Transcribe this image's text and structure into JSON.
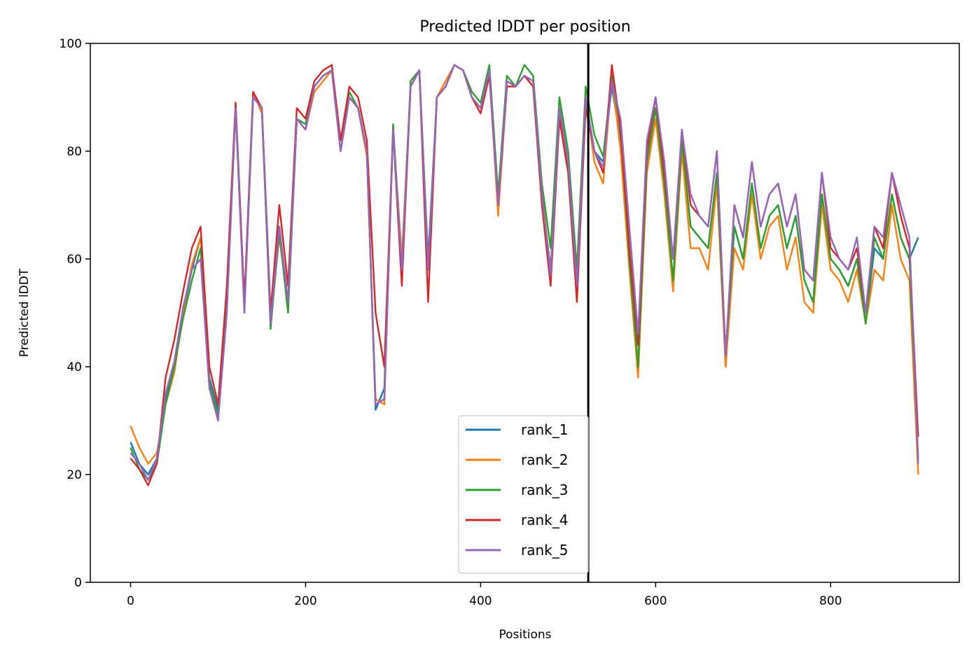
{
  "chart_data": {
    "type": "line",
    "title": "Predicted lDDT per position",
    "xlabel": "Positions",
    "ylabel": "Predicted lDDT",
    "xlim": [
      -46,
      947
    ],
    "ylim": [
      0,
      100
    ],
    "xticks": [
      0,
      200,
      400,
      600,
      800
    ],
    "yticks": [
      0,
      20,
      40,
      60,
      80,
      100
    ],
    "grid": false,
    "legend_position": "lower center",
    "vline_x": 523,
    "x_start": 0,
    "x_step": 10,
    "series": [
      {
        "name": "rank_1",
        "color": "#1f77b4",
        "values": [
          26,
          22,
          20,
          23,
          34,
          40,
          50,
          58,
          64,
          38,
          32,
          52,
          88,
          52,
          90,
          88,
          50,
          66,
          52,
          86,
          84,
          92,
          94,
          95,
          80,
          90,
          88,
          80,
          32,
          36,
          84,
          60,
          92,
          95,
          60,
          90,
          92,
          96,
          95,
          90,
          88,
          95,
          70,
          93,
          92,
          94,
          93,
          72,
          58,
          88,
          78,
          55,
          90,
          80,
          78,
          92,
          82,
          60,
          40,
          78,
          88,
          74,
          56,
          82,
          66,
          64,
          62,
          76,
          40,
          66,
          60,
          74,
          62,
          68,
          70,
          62,
          68,
          56,
          52,
          72,
          60,
          58,
          55,
          60,
          48,
          62,
          60,
          72,
          64,
          60,
          64
        ]
      },
      {
        "name": "rank_2",
        "color": "#ff7f0e",
        "values": [
          29,
          25,
          22,
          24,
          33,
          39,
          50,
          59,
          64,
          37,
          31,
          53,
          89,
          50,
          91,
          87,
          49,
          64,
          52,
          86,
          84,
          91,
          93,
          95,
          80,
          90,
          88,
          79,
          34,
          33,
          84,
          60,
          92,
          95,
          58,
          90,
          93,
          96,
          95,
          90,
          88,
          95,
          68,
          92,
          92,
          94,
          92,
          73,
          57,
          88,
          76,
          55,
          90,
          78,
          74,
          94,
          80,
          58,
          38,
          76,
          86,
          72,
          54,
          80,
          62,
          62,
          58,
          74,
          40,
          62,
          58,
          72,
          60,
          66,
          68,
          58,
          64,
          52,
          50,
          70,
          58,
          56,
          52,
          58,
          48,
          58,
          56,
          70,
          60,
          56,
          20
        ]
      },
      {
        "name": "rank_3",
        "color": "#2ca02c",
        "values": [
          25,
          21,
          19,
          22,
          33,
          40,
          49,
          56,
          62,
          37,
          31,
          52,
          88,
          51,
          90,
          88,
          47,
          65,
          50,
          86,
          85,
          92,
          94,
          95,
          82,
          91,
          88,
          80,
          33,
          34,
          85,
          57,
          93,
          95,
          58,
          90,
          92,
          96,
          95,
          91,
          89,
          96,
          72,
          94,
          92,
          96,
          94,
          74,
          62,
          90,
          80,
          58,
          92,
          83,
          79,
          94,
          84,
          60,
          40,
          78,
          88,
          74,
          56,
          82,
          66,
          64,
          62,
          76,
          42,
          66,
          60,
          74,
          62,
          68,
          70,
          62,
          68,
          56,
          52,
          72,
          60,
          58,
          55,
          60,
          48,
          64,
          60,
          72,
          64,
          60,
          23
        ]
      },
      {
        "name": "rank_4",
        "color": "#d62728",
        "values": [
          23,
          21,
          18,
          22,
          38,
          45,
          54,
          62,
          66,
          40,
          33,
          55,
          89,
          52,
          91,
          88,
          50,
          70,
          55,
          88,
          86,
          93,
          95,
          96,
          82,
          92,
          90,
          82,
          50,
          40,
          84,
          55,
          92,
          95,
          52,
          90,
          92,
          96,
          95,
          90,
          87,
          94,
          70,
          92,
          92,
          94,
          92,
          70,
          55,
          86,
          76,
          52,
          88,
          80,
          76,
          96,
          84,
          62,
          44,
          80,
          90,
          76,
          60,
          84,
          70,
          68,
          66,
          80,
          42,
          70,
          64,
          78,
          66,
          72,
          74,
          66,
          72,
          58,
          56,
          76,
          62,
          60,
          58,
          62,
          50,
          66,
          62,
          76,
          68,
          62,
          27
        ]
      },
      {
        "name": "rank_5",
        "color": "#9467bd",
        "values": [
          24,
          22,
          19,
          23,
          35,
          41,
          51,
          58,
          60,
          36,
          30,
          50,
          88,
          50,
          90,
          88,
          48,
          66,
          52,
          86,
          84,
          92,
          94,
          95,
          80,
          90,
          88,
          80,
          33,
          34,
          84,
          58,
          92,
          95,
          58,
          90,
          92,
          96,
          95,
          90,
          88,
          95,
          70,
          93,
          92,
          94,
          93,
          72,
          57,
          88,
          78,
          55,
          90,
          80,
          77,
          93,
          86,
          66,
          46,
          82,
          90,
          78,
          60,
          84,
          72,
          68,
          66,
          80,
          42,
          70,
          64,
          78,
          66,
          72,
          74,
          66,
          72,
          58,
          56,
          76,
          64,
          60,
          58,
          64,
          50,
          66,
          64,
          76,
          70,
          64,
          22
        ]
      }
    ]
  }
}
